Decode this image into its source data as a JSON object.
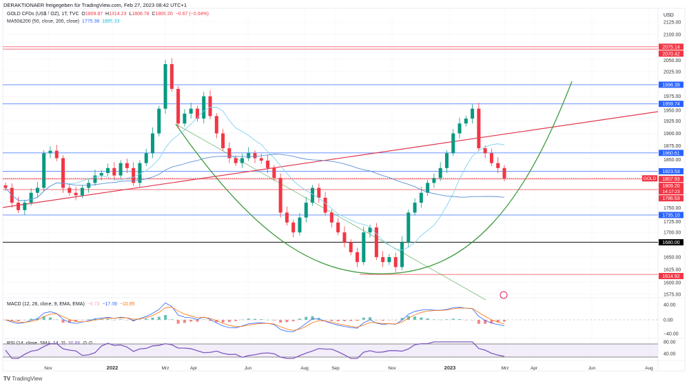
{
  "header": {
    "published": "DERAKTIONAER freigegeben für TradingView.com, Feb 27, 2023 08:42 UTC+1",
    "symbol": "GOLD CFDs (US$ / OZ), 1T, TVC",
    "o_label": "O",
    "o": "1809.87",
    "h_label": "H",
    "h": "1814.23",
    "l_label": "L",
    "l": "1806.78",
    "c_label": "C",
    "c": "1809.20",
    "change": "−0.67 (−0.04%)",
    "ma_label": "MA50&200 (50, close, 200, close)",
    "ma50": "1775.38",
    "ma200": "1865.33"
  },
  "colors": {
    "up": "#089981",
    "down": "#f23645",
    "blue": "#2962ff",
    "ma50": "#7fd3f0",
    "ma200": "#5b8fd6",
    "green": "#3d9a3d",
    "red": "#e0374e",
    "rsi": "#7e57c2"
  },
  "chart_data": {
    "type": "candlestick",
    "currency": "USD",
    "y_ticks": [
      "2125.00",
      "2100.00",
      "2050.00",
      "2025.00",
      "1975.00",
      "1950.00",
      "1925.00",
      "1900.00",
      "1875.00",
      "1850.00",
      "1750.00",
      "1725.00",
      "1700.00",
      "1650.00",
      "1625.00",
      "1600.00",
      "1575.00"
    ],
    "ylim": [
      1575,
      2125
    ],
    "x_ticks": [
      "Nov",
      "2022",
      "Mrz",
      "Apr",
      "Jun",
      "Aug",
      "Sep",
      "Nov",
      "2023",
      "Mrz",
      "Apr",
      "Jun",
      "Aug"
    ],
    "closes": [
      1790,
      1760,
      1745,
      1760,
      1780,
      1790,
      1860,
      1865,
      1850,
      1790,
      1780,
      1775,
      1790,
      1800,
      1815,
      1820,
      1830,
      1815,
      1840,
      1830,
      1800,
      1840,
      1860,
      1900,
      1950,
      2040,
      1990,
      1920,
      1940,
      1950,
      1930,
      1975,
      1935,
      1900,
      1870,
      1850,
      1840,
      1850,
      1860,
      1850,
      1845,
      1830,
      1810,
      1740,
      1720,
      1700,
      1730,
      1760,
      1790,
      1770,
      1740,
      1720,
      1700,
      1680,
      1660,
      1640,
      1700,
      1710,
      1650,
      1640,
      1650,
      1630,
      1680,
      1740,
      1760,
      1780,
      1800,
      1810,
      1830,
      1860,
      1900,
      1920,
      1930,
      1950,
      1870,
      1860,
      1840,
      1830,
      1809.2
    ],
    "levels": [
      {
        "value": 2075.14,
        "label": "2075.14",
        "color": "#f23645"
      },
      {
        "value": 2070.42,
        "label": "2070.42",
        "color": "#f23645"
      },
      {
        "value": 1998.39,
        "label": "1998.39",
        "color": "#2962ff"
      },
      {
        "value": 1959.74,
        "label": "1959.74",
        "color": "#2962ff"
      },
      {
        "value": 1860.61,
        "label": "1860.61",
        "color": "#2962ff"
      },
      {
        "value": 1823.53,
        "label": "1823.53",
        "color": "#2962ff"
      },
      {
        "value": 1807.93,
        "label": "1807.93",
        "color": "#f23645"
      },
      {
        "value": 1786.53,
        "label": "1786.53",
        "color": "#f23645"
      },
      {
        "value": 1735.1,
        "label": "1735.10",
        "color": "#2962ff"
      },
      {
        "value": 1680.0,
        "label": "1680.00",
        "color": "#000000"
      },
      {
        "value": 1614.92,
        "label": "1614.92",
        "color": "#f23645"
      }
    ],
    "last_price": {
      "symbol": "GOLD",
      "value": 1809.2,
      "label": "1809.20",
      "countdown": "14:17:23"
    },
    "macd": {
      "label": "MACD (12, 26, close, 9, EMA, EMA)",
      "hist": "−6.73",
      "macd": "−17.69",
      "signal": "−10.95",
      "ticks": [
        "40.00",
        "0.00",
        "−40.00"
      ]
    },
    "rsi": {
      "label": "RSI (14, close, SMA, 14, 2)",
      "value": "30.86",
      "extra1": "∅",
      "extra2": "∅",
      "ticks": [
        "80.00",
        "40.00"
      ]
    }
  },
  "branding": {
    "logo": "TradingView"
  }
}
